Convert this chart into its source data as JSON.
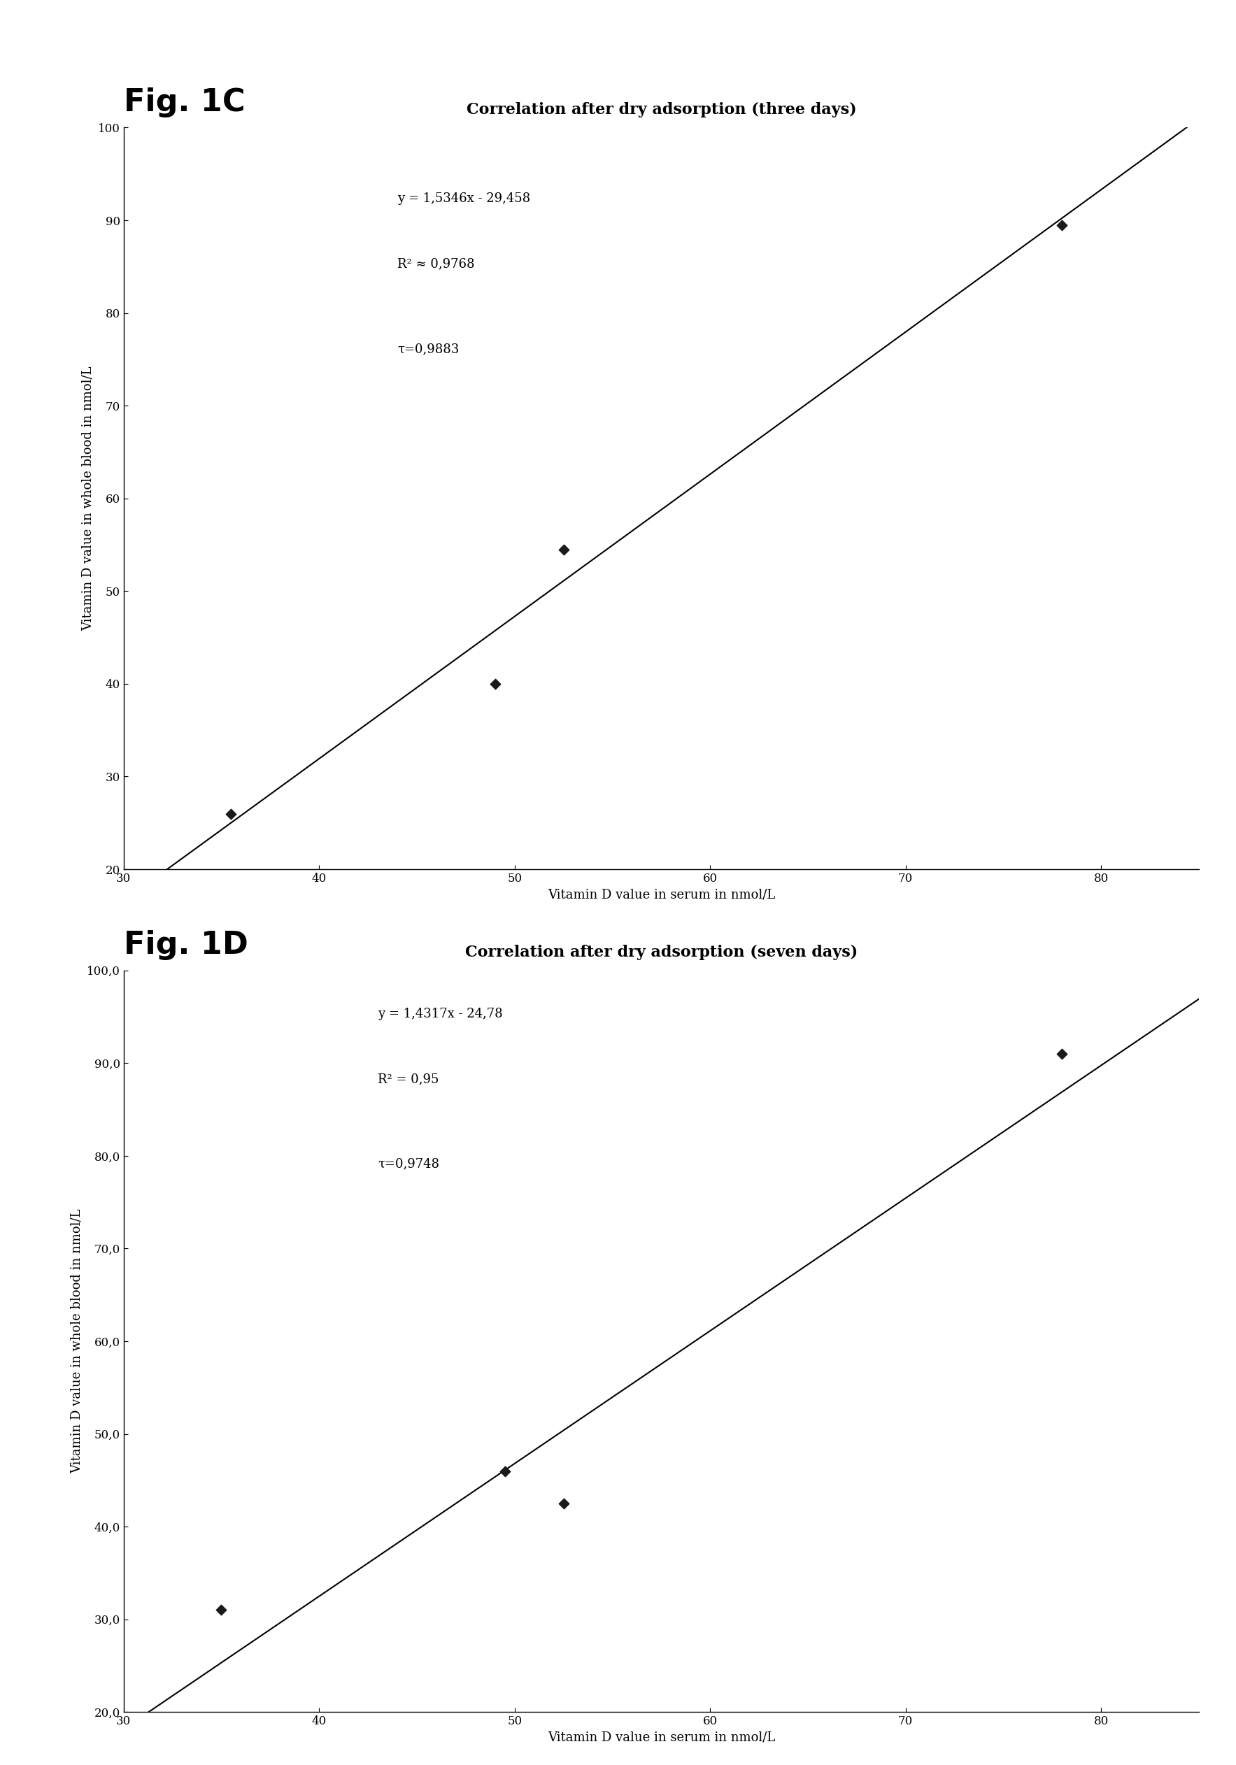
{
  "fig_c": {
    "label": "Fig. 1C",
    "title": "Correlation after dry adsorption (three days)",
    "xlabel": "Vitamin D value in serum in nmol/L",
    "ylabel": "Vitamin D value in whole blood in nmol/L",
    "scatter_x": [
      35.5,
      49.0,
      52.5,
      78.0
    ],
    "scatter_y": [
      26.0,
      40.0,
      54.5,
      89.5
    ],
    "line_slope": 1.5346,
    "line_intercept": -29.458,
    "xlim": [
      30,
      85
    ],
    "ylim": [
      20,
      100
    ],
    "xticks": [
      30,
      40,
      50,
      60,
      70,
      80
    ],
    "yticks": [
      20,
      30,
      40,
      50,
      60,
      70,
      80,
      90,
      100
    ],
    "ytick_labels": [
      "20",
      "30",
      "40",
      "50",
      "60",
      "70",
      "80",
      "90",
      "100"
    ],
    "annotation_line1": "y = 1,5346x - 29,458",
    "annotation_line2": "R² ≈ 0,9768",
    "annotation_line3": "τ=0,9883",
    "ann_x": 44.0,
    "ann_y": 93.0
  },
  "fig_d": {
    "label": "Fig. 1D",
    "title": "Correlation after dry adsorption (seven days)",
    "xlabel": "Vitamin D value in serum in nmol/L",
    "ylabel": "Vitamin D value in whole blood in nmol/L",
    "scatter_x": [
      35.0,
      49.5,
      52.5,
      78.0
    ],
    "scatter_y": [
      31.0,
      46.0,
      42.5,
      91.0
    ],
    "line_slope": 1.4317,
    "line_intercept": -24.78,
    "xlim": [
      30,
      85
    ],
    "ylim": [
      20.0,
      100.0
    ],
    "xticks": [
      30,
      40,
      50,
      60,
      70,
      80
    ],
    "yticks": [
      20.0,
      30.0,
      40.0,
      50.0,
      60.0,
      70.0,
      80.0,
      90.0,
      100.0
    ],
    "ytick_labels": [
      "20,0",
      "30,0",
      "40,0",
      "50,0",
      "60,0",
      "70,0",
      "80,0",
      "90,0",
      "100,0"
    ],
    "annotation_line1": "y = 1,4317x - 24,78",
    "annotation_line2": "R² = 0,95",
    "annotation_line3": "τ=0,9748",
    "ann_x": 43.0,
    "ann_y": 96.0
  },
  "background_color": "#ffffff",
  "text_color": "#000000",
  "line_color": "#000000",
  "scatter_color": "#1a1a1a",
  "dashed_line_color": "#aaaaaa",
  "dashed_y": 20.0,
  "label_fontsize": 32,
  "title_fontsize": 16,
  "tick_fontsize": 12,
  "axis_label_fontsize": 13,
  "annotation_fontsize": 13
}
